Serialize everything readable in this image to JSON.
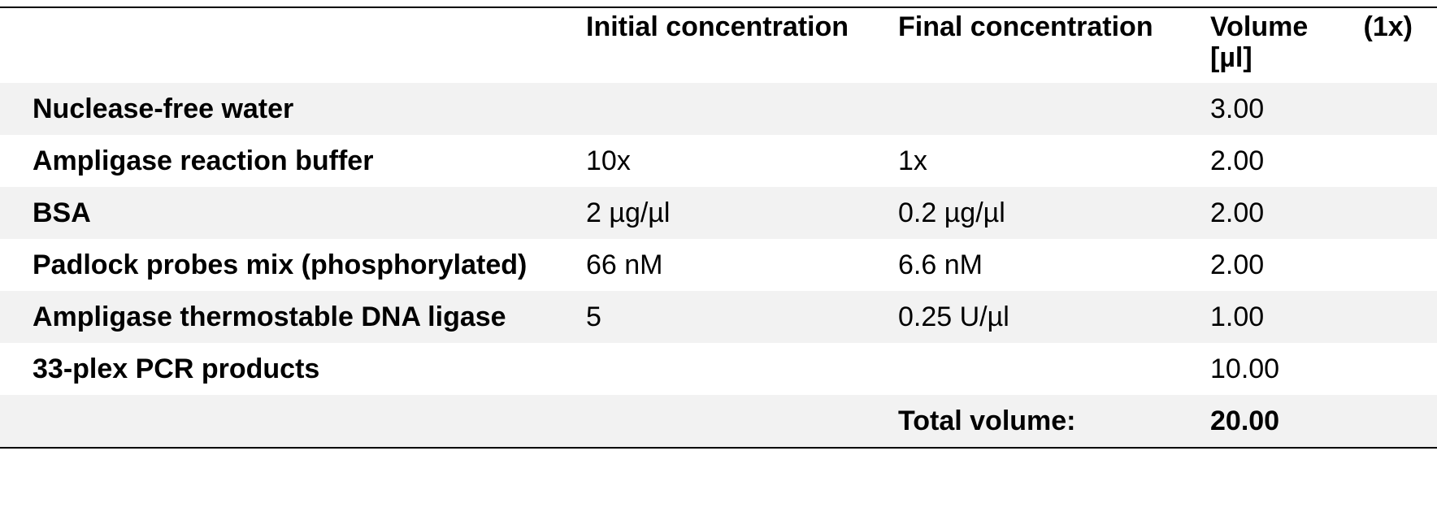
{
  "table": {
    "header": [
      null,
      "Initial concentration",
      "Final concentration",
      "Volume (1x) [µl]"
    ],
    "rows": [
      [
        "Nuclease-free water",
        null,
        null,
        "3.00"
      ],
      [
        "Ampligase reaction buffer",
        "10x",
        "1x",
        "2.00"
      ],
      [
        "BSA",
        "2 µg/µl",
        "0.2 µg/µl",
        "2.00"
      ],
      [
        "Padlock probes mix (phosphorylated)",
        "66 nM",
        "6.6 nM",
        "2.00"
      ],
      [
        "Ampligase thermostable DNA ligase",
        "5",
        "0.25 U/µl",
        "1.00"
      ],
      [
        "33-plex PCR products",
        null,
        null,
        "10.00"
      ],
      [
        null,
        null,
        "Total volume:",
        "20.00"
      ]
    ]
  }
}
